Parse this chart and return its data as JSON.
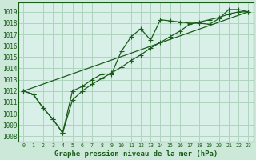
{
  "title": "Graphe pression niveau de la mer (hPa)",
  "background_color": "#cce8d8",
  "plot_bg_color": "#d8f0e8",
  "grid_color": "#b0d4c0",
  "line_color": "#1a5c1a",
  "xlim": [
    -0.5,
    23.5
  ],
  "ylim": [
    1007.5,
    1019.8
  ],
  "yticks": [
    1008,
    1009,
    1010,
    1011,
    1012,
    1013,
    1014,
    1015,
    1016,
    1017,
    1018,
    1019
  ],
  "xticks": [
    0,
    1,
    2,
    3,
    4,
    5,
    6,
    7,
    8,
    9,
    10,
    11,
    12,
    13,
    14,
    15,
    16,
    17,
    18,
    19,
    20,
    21,
    22,
    23
  ],
  "series1_x": [
    0,
    1,
    2,
    3,
    4,
    5,
    6,
    7,
    8,
    9,
    10,
    11,
    12,
    13,
    14,
    15,
    16,
    17,
    18,
    19,
    20,
    21,
    22,
    23
  ],
  "series1_y": [
    1012.0,
    1011.7,
    1010.5,
    1009.5,
    1008.3,
    1012.0,
    1012.4,
    1013.0,
    1013.5,
    1013.5,
    1015.5,
    1016.8,
    1017.5,
    1016.5,
    1018.3,
    1018.2,
    1018.1,
    1018.0,
    1018.0,
    1017.9,
    1018.4,
    1019.2,
    1019.2,
    1019.0
  ],
  "series2_x": [
    0,
    1,
    2,
    3,
    4,
    5,
    6,
    7,
    8,
    9,
    10,
    11,
    12,
    13,
    14,
    15,
    16,
    17,
    18,
    19,
    20,
    21,
    22,
    23
  ],
  "series2_y": [
    1012.0,
    1011.7,
    1010.5,
    1009.5,
    1008.3,
    1011.2,
    1012.0,
    1012.6,
    1013.1,
    1013.6,
    1014.1,
    1014.7,
    1015.2,
    1015.8,
    1016.3,
    1016.8,
    1017.3,
    1017.9,
    1018.1,
    1018.3,
    1018.5,
    1018.8,
    1019.0,
    1019.0
  ],
  "series3_x": [
    0,
    23
  ],
  "series3_y": [
    1012.0,
    1019.0
  ],
  "ytick_fontsize": 5.5,
  "xtick_fontsize": 4.8,
  "xlabel_fontsize": 6.5
}
